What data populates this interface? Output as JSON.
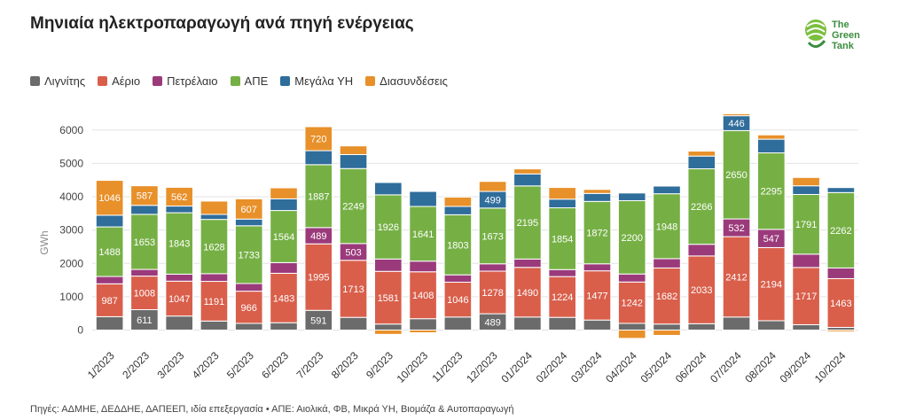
{
  "title": "Μηνιαία ηλεκτροπαραγωγή ανά πηγή ενέργειας",
  "logo": {
    "line1": "The",
    "line2": "Green",
    "line3": "Tank"
  },
  "footer": "Πηγές: ΑΔΜΗΕ, ΔΕΔΔΗΕ, ΔΑΠΕΕΠ, ιδία επεξεργασία • ΑΠΕ: Αιολικά, ΦΒ, Μικρά ΥΗ, Βιομάζα & Αυτοπαραγωγή",
  "chart_data": {
    "type": "bar",
    "stacked": true,
    "ylabel": "GWh",
    "ylim": [
      -200,
      6500
    ],
    "yticks": [
      0,
      1000,
      2000,
      3000,
      4000,
      5000,
      6000
    ],
    "grid": true,
    "legend_position": "top-left",
    "categories": [
      "1/2023",
      "2/2023",
      "3/2023",
      "4/2023",
      "5/2023",
      "6/2023",
      "7/2023",
      "8/2023",
      "9/2023",
      "10/2023",
      "11/2023",
      "12/2023",
      "01/2024",
      "02/2024",
      "03/2024",
      "04/2024",
      "05/2024",
      "06/2024",
      "07/2024",
      "08/2024",
      "09/2024",
      "10/2024"
    ],
    "series": [
      {
        "name": "Λιγνίτης",
        "color": "#6b6b6b",
        "values": [
          400,
          611,
          420,
          270,
          200,
          220,
          591,
          380,
          180,
          340,
          390,
          489,
          390,
          380,
          300,
          200,
          180,
          190,
          390,
          280,
          160,
          80
        ],
        "labels": [
          null,
          "611",
          null,
          null,
          null,
          null,
          "591",
          null,
          null,
          null,
          null,
          "489",
          null,
          null,
          null,
          null,
          null,
          null,
          null,
          null,
          null,
          null
        ]
      },
      {
        "name": "Αέριο",
        "color": "#d95f4b",
        "values": [
          987,
          1008,
          1047,
          1191,
          966,
          1483,
          1995,
          1713,
          1581,
          1408,
          1046,
          1278,
          1490,
          1224,
          1477,
          1242,
          1682,
          2033,
          2412,
          2194,
          1717,
          1463
        ],
        "labels": [
          "987",
          "1008",
          "1047",
          "1191",
          "966",
          "1483",
          "1995",
          "1713",
          "1581",
          "1408",
          "1046",
          "1278",
          "1490",
          "1224",
          "1477",
          "1242",
          "1682",
          "2033",
          "2412",
          "2194",
          "1717",
          "1463"
        ]
      },
      {
        "name": "Πετρέλαιο",
        "color": "#9b3a7b",
        "values": [
          220,
          200,
          210,
          230,
          230,
          320,
          489,
          503,
          370,
          320,
          220,
          220,
          250,
          210,
          210,
          240,
          280,
          350,
          532,
          547,
          400,
          320
        ],
        "labels": [
          null,
          null,
          null,
          null,
          null,
          null,
          "489",
          "503",
          null,
          null,
          null,
          null,
          null,
          null,
          null,
          null,
          null,
          null,
          "532",
          "547",
          null,
          null
        ]
      },
      {
        "name": "ΑΠΕ",
        "color": "#76b045",
        "values": [
          1488,
          1653,
          1843,
          1628,
          1733,
          1564,
          1887,
          2249,
          1926,
          1641,
          1803,
          1673,
          2195,
          1854,
          1872,
          2200,
          1948,
          2266,
          2650,
          2295,
          1791,
          2262
        ],
        "labels": [
          "1488",
          "1653",
          "1843",
          "1628",
          "1733",
          "1564",
          "1887",
          "2249",
          "1926",
          "1641",
          "1803",
          "1673",
          "2195",
          "1854",
          "1872",
          "2200",
          "1948",
          "2266",
          "2650",
          "2295",
          "1791",
          "2262"
        ]
      },
      {
        "name": "Μεγάλα ΥΗ",
        "color": "#2f6d9b",
        "values": [
          350,
          270,
          200,
          150,
          200,
          350,
          420,
          420,
          370,
          450,
          250,
          499,
          360,
          260,
          240,
          230,
          230,
          380,
          446,
          410,
          260,
          150
        ],
        "labels": [
          null,
          null,
          null,
          null,
          null,
          null,
          null,
          null,
          null,
          null,
          null,
          "499",
          null,
          null,
          null,
          null,
          null,
          null,
          "446",
          null,
          null,
          null
        ]
      },
      {
        "name": "Διασυνδέσεις",
        "color": "#e8902a",
        "values": [
          1046,
          587,
          562,
          400,
          607,
          330,
          720,
          260,
          -130,
          -80,
          280,
          300,
          150,
          350,
          120,
          -250,
          -160,
          150,
          60,
          130,
          250,
          -50
        ],
        "labels": [
          "1046",
          "587",
          "562",
          null,
          "607",
          null,
          "720",
          null,
          null,
          null,
          null,
          null,
          null,
          null,
          null,
          null,
          null,
          null,
          null,
          null,
          null,
          null
        ]
      }
    ]
  }
}
